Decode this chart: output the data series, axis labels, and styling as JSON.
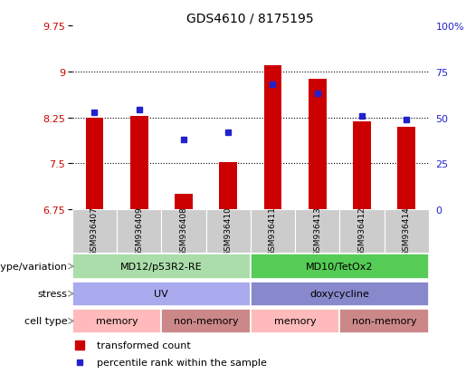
{
  "title": "GDS4610 / 8175195",
  "samples": [
    "GSM936407",
    "GSM936409",
    "GSM936408",
    "GSM936410",
    "GSM936411",
    "GSM936413",
    "GSM936412",
    "GSM936414"
  ],
  "bar_values": [
    8.25,
    8.28,
    7.0,
    7.52,
    9.1,
    8.88,
    8.18,
    8.1
  ],
  "dot_values": [
    53,
    54,
    38,
    42,
    68,
    63,
    51,
    49
  ],
  "ylim_left": [
    6.75,
    9.75
  ],
  "ylim_right": [
    0,
    100
  ],
  "yticks_left": [
    6.75,
    7.5,
    8.25,
    9.0,
    9.75
  ],
  "yticks_left_labels": [
    "6.75",
    "7.5",
    "8.25",
    "9",
    "9.75"
  ],
  "yticks_right": [
    0,
    25,
    50,
    75,
    100
  ],
  "yticks_right_labels": [
    "0",
    "25",
    "50",
    "75",
    "100%"
  ],
  "grid_lines": [
    7.5,
    8.25,
    9.0
  ],
  "bar_color": "#cc0000",
  "dot_color": "#2222cc",
  "bar_base": 6.75,
  "bar_width": 0.4,
  "genotype": [
    {
      "label": "MD12/p53R2-RE",
      "start": 0,
      "end": 4,
      "color": "#aaddaa"
    },
    {
      "label": "MD10/TetOx2",
      "start": 4,
      "end": 8,
      "color": "#55cc55"
    }
  ],
  "stress": [
    {
      "label": "UV",
      "start": 0,
      "end": 4,
      "color": "#aaaaee"
    },
    {
      "label": "doxycycline",
      "start": 4,
      "end": 8,
      "color": "#8888cc"
    }
  ],
  "celltype": [
    {
      "label": "memory",
      "start": 0,
      "end": 2,
      "color": "#ffbbbb"
    },
    {
      "label": "non-memory",
      "start": 2,
      "end": 4,
      "color": "#cc8888"
    },
    {
      "label": "memory",
      "start": 4,
      "end": 6,
      "color": "#ffbbbb"
    },
    {
      "label": "non-memory",
      "start": 6,
      "end": 8,
      "color": "#cc8888"
    }
  ],
  "row_labels": [
    "genotype/variation",
    "stress",
    "cell type"
  ],
  "legend_bar_label": "transformed count",
  "legend_dot_label": "percentile rank within the sample",
  "tick_color_left": "#cc0000",
  "tick_color_right": "#2222cc",
  "xlabel_bg_color": "#cccccc",
  "arrow_color": "#999999",
  "title_fontsize": 10,
  "tick_fontsize": 8,
  "label_fontsize": 8,
  "sample_fontsize": 6.5,
  "legend_fontsize": 8
}
